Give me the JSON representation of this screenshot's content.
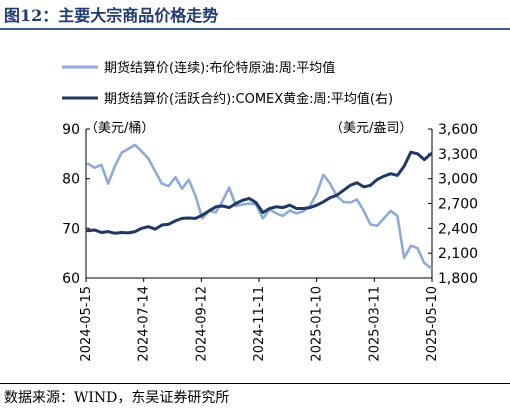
{
  "figure": {
    "title": "图12：主要大宗商品价格走势",
    "source": "数据来源：WIND，东吴证券研究所"
  },
  "colors": {
    "brent": "#8eaadb",
    "comex": "#1f3864",
    "title": "#1f3b73"
  },
  "chart_data": {
    "type": "line",
    "title": "",
    "x_tick_labels": [
      "2024-05-15",
      "2024-07-14",
      "2024-09-12",
      "2024-11-11",
      "2025-01-10",
      "2025-03-11",
      "2025-05-10"
    ],
    "left_axis": {
      "label": "（美元/桶）",
      "range": [
        60,
        90
      ],
      "ticks": [
        "60",
        "70",
        "80",
        "90"
      ]
    },
    "right_axis": {
      "label": "（美元/盎司）",
      "range": [
        1800,
        3600
      ],
      "ticks": [
        "1,800",
        "2,100",
        "2,400",
        "2,700",
        "3,000",
        "3,300",
        "3,600"
      ]
    },
    "legend": "top, stacked",
    "grid": false,
    "series": [
      {
        "name": "期货结算价(连续):布伦特原油:周:平均值",
        "axis": "left",
        "dates": [
          "2024-05-17",
          "2024-05-24",
          "2024-05-31",
          "2024-06-07",
          "2024-06-14",
          "2024-06-21",
          "2024-06-28",
          "2024-07-05",
          "2024-07-12",
          "2024-07-19",
          "2024-07-26",
          "2024-08-02",
          "2024-08-09",
          "2024-08-16",
          "2024-08-23",
          "2024-08-30",
          "2024-09-06",
          "2024-09-13",
          "2024-09-20",
          "2024-09-27",
          "2024-10-04",
          "2024-10-11",
          "2024-10-18",
          "2024-10-25",
          "2024-11-01",
          "2024-11-08",
          "2024-11-15",
          "2024-11-22",
          "2024-11-29",
          "2024-12-06",
          "2024-12-13",
          "2024-12-20",
          "2024-12-27",
          "2025-01-03",
          "2025-01-10",
          "2025-01-17",
          "2025-01-24",
          "2025-01-31",
          "2025-02-07",
          "2025-02-14",
          "2025-02-21",
          "2025-02-28",
          "2025-03-07",
          "2025-03-14",
          "2025-03-21",
          "2025-03-28",
          "2025-04-04",
          "2025-04-11",
          "2025-04-18",
          "2025-04-25",
          "2025-05-02",
          "2025-05-09"
        ],
        "values": [
          83.0,
          82.2,
          82.8,
          79.0,
          82.5,
          85.2,
          86.0,
          86.8,
          85.5,
          84.0,
          81.5,
          79.0,
          78.5,
          80.3,
          78.0,
          79.8,
          76.5,
          72.0,
          73.5,
          73.2,
          75.5,
          78.2,
          74.5,
          74.8,
          75.0,
          74.8,
          72.0,
          73.8,
          73.0,
          72.5,
          73.6,
          73.0,
          73.4,
          74.5,
          77.0,
          80.8,
          79.0,
          76.5,
          75.3,
          75.2,
          75.8,
          73.5,
          70.8,
          70.5,
          72.0,
          73.5,
          72.5,
          64.0,
          66.5,
          66.0,
          63.0,
          62.0
        ]
      },
      {
        "name": "期货结算价(活跃合约):COMEX黄金:周:平均值(右)",
        "axis": "right",
        "dates": [
          "2024-05-17",
          "2024-05-24",
          "2024-05-31",
          "2024-06-07",
          "2024-06-14",
          "2024-06-21",
          "2024-06-28",
          "2024-07-05",
          "2024-07-12",
          "2024-07-19",
          "2024-07-26",
          "2024-08-02",
          "2024-08-09",
          "2024-08-16",
          "2024-08-23",
          "2024-08-30",
          "2024-09-06",
          "2024-09-13",
          "2024-09-20",
          "2024-09-27",
          "2024-10-04",
          "2024-10-11",
          "2024-10-18",
          "2024-10-25",
          "2024-11-01",
          "2024-11-08",
          "2024-11-15",
          "2024-11-22",
          "2024-11-29",
          "2024-12-06",
          "2024-12-13",
          "2024-12-20",
          "2024-12-27",
          "2025-01-03",
          "2025-01-10",
          "2025-01-17",
          "2025-01-24",
          "2025-01-31",
          "2025-02-07",
          "2025-02-14",
          "2025-02-21",
          "2025-02-28",
          "2025-03-07",
          "2025-03-14",
          "2025-03-21",
          "2025-03-28",
          "2025-04-04",
          "2025-04-11",
          "2025-04-18",
          "2025-04-25",
          "2025-05-02",
          "2025-05-09"
        ],
        "values": [
          2370,
          2380,
          2350,
          2360,
          2340,
          2350,
          2345,
          2360,
          2400,
          2420,
          2390,
          2440,
          2450,
          2490,
          2520,
          2525,
          2520,
          2560,
          2610,
          2660,
          2670,
          2650,
          2700,
          2740,
          2760,
          2710,
          2590,
          2640,
          2660,
          2650,
          2680,
          2640,
          2640,
          2650,
          2680,
          2720,
          2770,
          2800,
          2860,
          2920,
          2950,
          2900,
          2920,
          2990,
          3030,
          3060,
          3040,
          3150,
          3320,
          3300,
          3230,
          3300
        ]
      }
    ]
  }
}
